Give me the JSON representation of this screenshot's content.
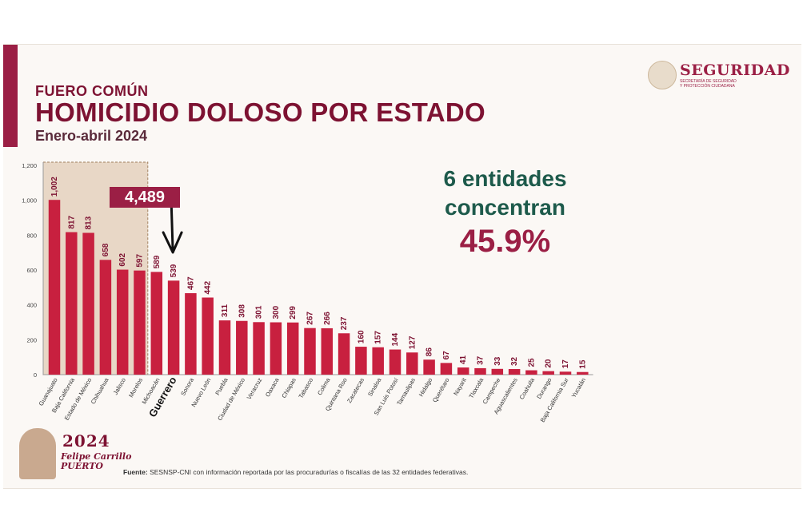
{
  "header": {
    "kicker": "FUERO COMÚN",
    "title": "HOMICIDIO DOLOSO POR ESTADO",
    "subtitle": "Enero-abril 2024"
  },
  "logo": {
    "word": "SEGURIDAD",
    "sub1": "SECRETARÍA DE SEGURIDAD",
    "sub2": "Y PROTECCIÓN CIUDADANA"
  },
  "stat": {
    "line1": "6 entidades",
    "line2": "concentran",
    "percent": "45.9%"
  },
  "badge": {
    "label": "4,489"
  },
  "highlight_label": "Guerrero",
  "footer": {
    "source_label": "Fuente:",
    "source_text": "SESNSP-CNI con información reportada por las procuradurías o fiscalías de las 32 entidades federativas."
  },
  "emblem": {
    "year": "2024",
    "name1": "Felipe Carrillo",
    "name2": "PUERTO"
  },
  "colors": {
    "bar": "#c8203f",
    "title": "#7d1232",
    "accent": "#9b1f45",
    "green": "#1d5a4b",
    "highlight_box": "#d8bb9f"
  },
  "chart_data": {
    "type": "bar",
    "title": "HOMICIDIO DOLOSO POR ESTADO",
    "xlabel": "",
    "ylabel": "",
    "ylim": [
      0,
      1200
    ],
    "yticks": [
      0,
      200,
      400,
      600,
      800,
      "1,000",
      "1,200"
    ],
    "grid": false,
    "highlight_count": 6,
    "categories": [
      "Guanajuato",
      "Baja California",
      "Estado de México",
      "Chihuahua",
      "Jalisco",
      "Morelos",
      "Michoacán",
      "Guerrero",
      "Sonora",
      "Nuevo León",
      "Puebla",
      "Ciudad de México",
      "Veracruz",
      "Oaxaca",
      "Chiapas",
      "Tabasco",
      "Colima",
      "Quintana Roo",
      "Zacatecas",
      "Sinaloa",
      "San Luis Potosí",
      "Tamaulipas",
      "Hidalgo",
      "Querétaro",
      "Nayarit",
      "Tlaxcala",
      "Campeche",
      "Aguascalientes",
      "Coahuila",
      "Durango",
      "Baja California Sur",
      "Yucatán"
    ],
    "values": [
      1002,
      817,
      813,
      658,
      602,
      597,
      589,
      539,
      467,
      442,
      311,
      308,
      301,
      300,
      299,
      267,
      266,
      237,
      160,
      157,
      144,
      127,
      86,
      67,
      41,
      37,
      33,
      32,
      25,
      20,
      17,
      15
    ],
    "labels": [
      "1,002",
      "817",
      "813",
      "658",
      "602",
      "597",
      "589",
      "539",
      "467",
      "442",
      "311",
      "308",
      "301",
      "300",
      "299",
      "267",
      "266",
      "237",
      "160",
      "157",
      "144",
      "127",
      "86",
      "67",
      "41",
      "37",
      "33",
      "32",
      "25",
      "20",
      "17",
      "15"
    ]
  }
}
